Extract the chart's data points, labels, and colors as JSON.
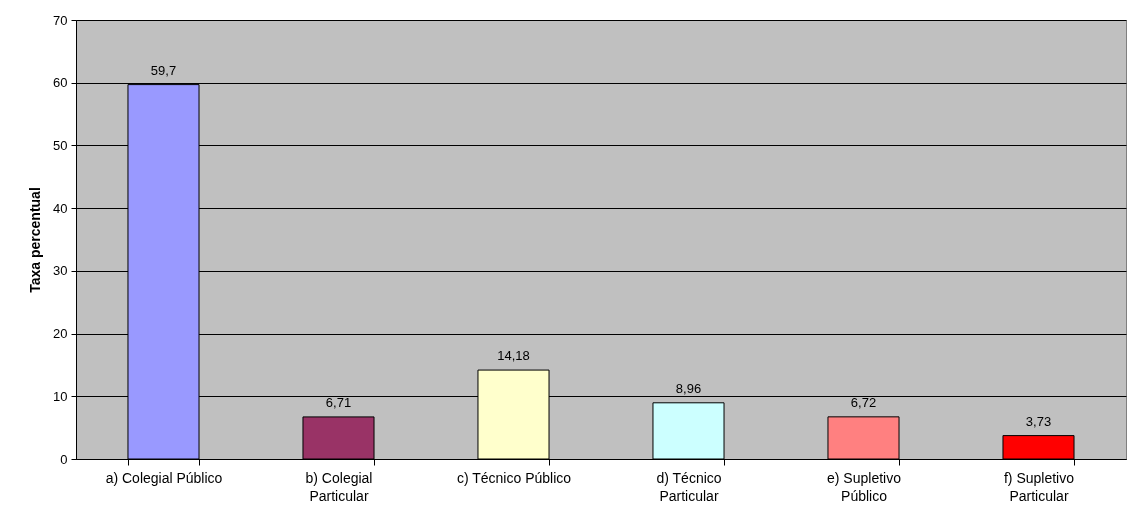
{
  "chart_data": {
    "type": "bar",
    "ylabel": "Taxa percentual",
    "categories": [
      "a) Colegial Público",
      "b) Colegial Particular",
      "c) Técnico Público",
      "d) Técnico Particular",
      "e) Supletivo Público",
      "f) Supletivo Particular"
    ],
    "values": [
      59.7,
      6.71,
      14.18,
      8.96,
      6.72,
      3.73
    ],
    "value_labels": [
      "59,7",
      "6,71",
      "14,18",
      "8,96",
      "6,72",
      "3,73"
    ],
    "colors": [
      "#9999ff",
      "#993366",
      "#ffffcc",
      "#ccffff",
      "#ff8080",
      "#ff0000"
    ],
    "ylim": [
      0,
      70
    ],
    "yticks": [
      0,
      10,
      20,
      30,
      40,
      50,
      60,
      70
    ],
    "grid": "y"
  }
}
